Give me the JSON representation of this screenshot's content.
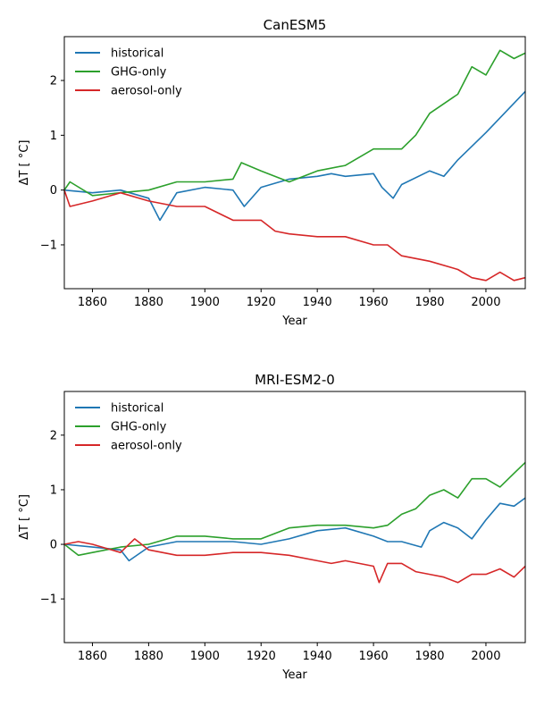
{
  "colors": {
    "historical": "#1f77b4",
    "ghg": "#2ca02c",
    "aerosol": "#d62728",
    "axis": "#000000",
    "background": "#ffffff"
  },
  "chart_data": [
    {
      "type": "line",
      "title": "CanESM5",
      "xlabel": "Year",
      "ylabel": "ΔT [ °C]",
      "xlim": [
        1850,
        2014
      ],
      "ylim": [
        -1.8,
        2.8
      ],
      "xticks": [
        1860,
        1880,
        1900,
        1920,
        1940,
        1960,
        1980,
        2000
      ],
      "yticks": [
        -1,
        0,
        1,
        2
      ],
      "grid": false,
      "legend_position": "top-left",
      "series": [
        {
          "name": "historical",
          "color": "#1f77b4",
          "x": [
            1850,
            1860,
            1870,
            1880,
            1884,
            1890,
            1900,
            1910,
            1914,
            1920,
            1930,
            1940,
            1945,
            1950,
            1960,
            1963,
            1967,
            1970,
            1980,
            1985,
            1990,
            2000,
            2014
          ],
          "y": [
            0.0,
            -0.05,
            0.0,
            -0.15,
            -0.55,
            -0.05,
            0.05,
            0.0,
            -0.3,
            0.05,
            0.2,
            0.25,
            0.3,
            0.25,
            0.3,
            0.05,
            -0.15,
            0.1,
            0.35,
            0.25,
            0.55,
            1.05,
            1.8
          ]
        },
        {
          "name": "GHG-only",
          "color": "#2ca02c",
          "x": [
            1850,
            1852,
            1860,
            1870,
            1880,
            1890,
            1900,
            1910,
            1913,
            1920,
            1930,
            1940,
            1950,
            1960,
            1970,
            1975,
            1980,
            1990,
            1995,
            2000,
            2005,
            2010,
            2014
          ],
          "y": [
            0.0,
            0.15,
            -0.1,
            -0.05,
            0.0,
            0.15,
            0.15,
            0.2,
            0.5,
            0.35,
            0.15,
            0.35,
            0.45,
            0.75,
            0.75,
            1.0,
            1.4,
            1.75,
            2.25,
            2.1,
            2.55,
            2.4,
            2.5
          ]
        },
        {
          "name": "aerosol-only",
          "color": "#d62728",
          "x": [
            1850,
            1852,
            1860,
            1870,
            1880,
            1890,
            1900,
            1910,
            1920,
            1925,
            1930,
            1940,
            1950,
            1960,
            1965,
            1970,
            1980,
            1990,
            1995,
            2000,
            2005,
            2010,
            2014
          ],
          "y": [
            0.0,
            -0.3,
            -0.2,
            -0.05,
            -0.2,
            -0.3,
            -0.3,
            -0.55,
            -0.55,
            -0.75,
            -0.8,
            -0.85,
            -0.85,
            -1.0,
            -1.0,
            -1.2,
            -1.3,
            -1.45,
            -1.6,
            -1.65,
            -1.5,
            -1.65,
            -1.6
          ]
        }
      ]
    },
    {
      "type": "line",
      "title": "MRI-ESM2-0",
      "xlabel": "Year",
      "ylabel": "ΔT [ °C]",
      "xlim": [
        1850,
        2014
      ],
      "ylim": [
        -1.8,
        2.8
      ],
      "xticks": [
        1860,
        1880,
        1900,
        1920,
        1940,
        1960,
        1980,
        2000
      ],
      "yticks": [
        -1,
        0,
        1,
        2
      ],
      "grid": false,
      "legend_position": "top-left",
      "series": [
        {
          "name": "historical",
          "color": "#1f77b4",
          "x": [
            1850,
            1860,
            1870,
            1873,
            1880,
            1890,
            1900,
            1910,
            1920,
            1930,
            1940,
            1950,
            1960,
            1965,
            1970,
            1977,
            1980,
            1985,
            1990,
            1995,
            2000,
            2005,
            2010,
            2014
          ],
          "y": [
            0.0,
            -0.05,
            -0.1,
            -0.3,
            -0.05,
            0.05,
            0.05,
            0.05,
            0.0,
            0.1,
            0.25,
            0.3,
            0.15,
            0.05,
            0.05,
            -0.05,
            0.25,
            0.4,
            0.3,
            0.1,
            0.45,
            0.75,
            0.7,
            0.85
          ]
        },
        {
          "name": "GHG-only",
          "color": "#2ca02c",
          "x": [
            1850,
            1855,
            1860,
            1870,
            1880,
            1890,
            1900,
            1910,
            1920,
            1930,
            1940,
            1950,
            1960,
            1965,
            1970,
            1975,
            1980,
            1985,
            1990,
            1995,
            2000,
            2005,
            2010,
            2014
          ],
          "y": [
            0.0,
            -0.2,
            -0.15,
            -0.05,
            0.0,
            0.15,
            0.15,
            0.1,
            0.1,
            0.3,
            0.35,
            0.35,
            0.3,
            0.35,
            0.55,
            0.65,
            0.9,
            1.0,
            0.85,
            1.2,
            1.2,
            1.05,
            1.3,
            1.5
          ]
        },
        {
          "name": "aerosol-only",
          "color": "#d62728",
          "x": [
            1850,
            1855,
            1860,
            1870,
            1875,
            1880,
            1890,
            1900,
            1910,
            1920,
            1930,
            1940,
            1945,
            1950,
            1960,
            1962,
            1965,
            1970,
            1975,
            1980,
            1985,
            1990,
            1995,
            2000,
            2005,
            2010,
            2014
          ],
          "y": [
            0.0,
            0.05,
            0.0,
            -0.15,
            0.1,
            -0.1,
            -0.2,
            -0.2,
            -0.15,
            -0.15,
            -0.2,
            -0.3,
            -0.35,
            -0.3,
            -0.4,
            -0.7,
            -0.35,
            -0.35,
            -0.5,
            -0.55,
            -0.6,
            -0.7,
            -0.55,
            -0.55,
            -0.45,
            -0.6,
            -0.4
          ]
        }
      ]
    }
  ]
}
